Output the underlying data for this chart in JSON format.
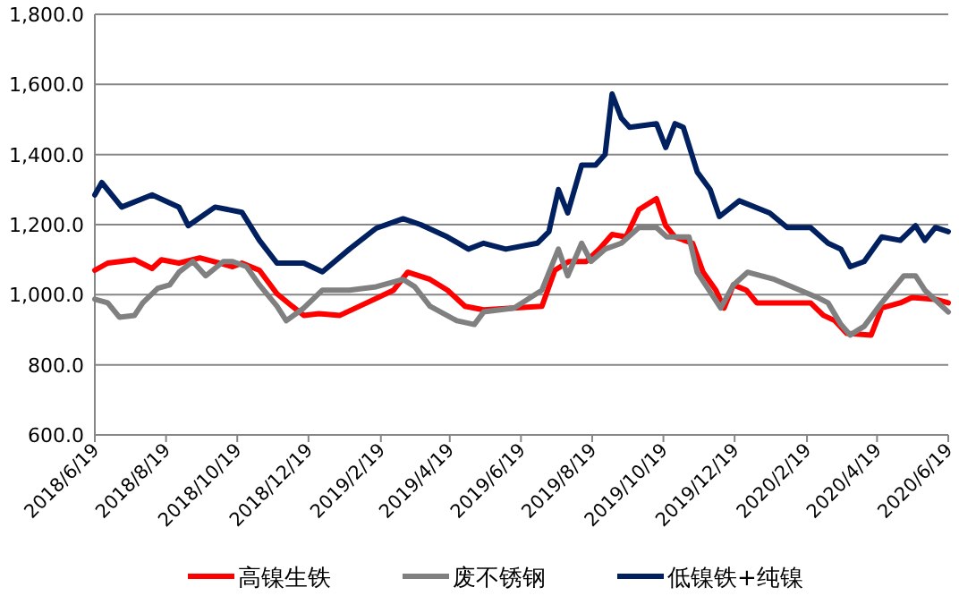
{
  "chart_data": {
    "type": "line",
    "xlim": [
      "2018-06-19",
      "2020-06-19"
    ],
    "xticks": [
      {
        "value": "2018-06-19",
        "label": "2018/6/19"
      },
      {
        "value": "2018-08-19",
        "label": "2018/8/19"
      },
      {
        "value": "2018-10-19",
        "label": "2018/10/19"
      },
      {
        "value": "2018-12-19",
        "label": "2018/12/19"
      },
      {
        "value": "2019-02-19",
        "label": "2019/2/19"
      },
      {
        "value": "2019-04-19",
        "label": "2019/4/19"
      },
      {
        "value": "2019-06-19",
        "label": "2019/6/19"
      },
      {
        "value": "2019-08-19",
        "label": "2019/8/19"
      },
      {
        "value": "2019-10-19",
        "label": "2019/10/19"
      },
      {
        "value": "2019-12-19",
        "label": "2019/12/19"
      },
      {
        "value": "2020-02-19",
        "label": "2020/2/19"
      },
      {
        "value": "2020-04-19",
        "label": "2020/4/19"
      },
      {
        "value": "2020-06-19",
        "label": "2020/6/19"
      }
    ],
    "ylim": [
      600,
      1800
    ],
    "yticks": [
      {
        "value": 600,
        "label": "600.0"
      },
      {
        "value": 800,
        "label": "800.0"
      },
      {
        "value": 1000,
        "label": "1,000.0"
      },
      {
        "value": 1200,
        "label": "1,200.0"
      },
      {
        "value": 1400,
        "label": "1,400.0"
      },
      {
        "value": 1600,
        "label": "1,600.0"
      },
      {
        "value": 1800,
        "label": "1,800.0"
      }
    ],
    "grid": "y",
    "legend": "bottom",
    "marker": "none",
    "line_style": "solid",
    "series": [
      {
        "name": "高镍生铁",
        "color": "#ff0000",
        "x": [
          "2018-06-19",
          "2018-06-30",
          "2018-07-23",
          "2018-08-07",
          "2018-08-15",
          "2018-08-30",
          "2018-09-17",
          "2018-10-15",
          "2018-10-23",
          "2018-11-07",
          "2018-11-22",
          "2018-12-05",
          "2018-12-15",
          "2018-12-28",
          "2019-01-15",
          "2019-02-07",
          "2019-03-02",
          "2019-03-14",
          "2019-04-02",
          "2019-04-17",
          "2019-05-02",
          "2019-05-18",
          "2019-07-07",
          "2019-07-18",
          "2019-07-30",
          "2019-08-14",
          "2019-08-25",
          "2019-09-05",
          "2019-09-17",
          "2019-09-28",
          "2019-10-13",
          "2019-10-21",
          "2019-10-29",
          "2019-11-13",
          "2019-11-22",
          "2019-12-03",
          "2019-12-10",
          "2019-12-18",
          "2019-12-29",
          "2020-01-07",
          "2020-02-22",
          "2020-03-04",
          "2020-03-14",
          "2020-03-24",
          "2020-04-14",
          "2020-04-23",
          "2020-05-09",
          "2020-05-19",
          "2020-06-08",
          "2020-06-19"
        ],
        "values": [
          1070,
          1090,
          1100,
          1075,
          1100,
          1090,
          1105,
          1080,
          1090,
          1070,
          1003,
          967,
          941,
          946,
          941,
          977,
          1013,
          1064,
          1044,
          1013,
          967,
          957,
          967,
          1070,
          1095,
          1095,
          1130,
          1172,
          1165,
          1243,
          1274,
          1197,
          1165,
          1147,
          1064,
          1013,
          962,
          1028,
          1013,
          977,
          977,
          941,
          926,
          890,
          885,
          962,
          977,
          992,
          987,
          977
        ]
      },
      {
        "name": "废不锈钢",
        "color": "#808080",
        "x": [
          "2018-06-19",
          "2018-06-30",
          "2018-07-10",
          "2018-07-23",
          "2018-07-30",
          "2018-08-12",
          "2018-08-22",
          "2018-08-30",
          "2018-09-11",
          "2018-09-22",
          "2018-10-07",
          "2018-10-15",
          "2018-10-27",
          "2018-11-07",
          "2018-11-22",
          "2018-11-30",
          "2018-12-15",
          "2018-12-31",
          "2019-01-23",
          "2019-02-15",
          "2019-03-10",
          "2019-03-20",
          "2019-04-02",
          "2019-04-25",
          "2019-05-10",
          "2019-05-18",
          "2019-06-13",
          "2019-07-07",
          "2019-07-21",
          "2019-07-29",
          "2019-08-10",
          "2019-08-18",
          "2019-08-30",
          "2019-09-13",
          "2019-09-28",
          "2019-10-13",
          "2019-10-22",
          "2019-11-10",
          "2019-11-17",
          "2019-12-07",
          "2019-12-18",
          "2019-12-30",
          "2020-01-22",
          "2020-02-13",
          "2020-02-28",
          "2020-03-08",
          "2020-03-19",
          "2020-03-27",
          "2020-04-08",
          "2020-04-23",
          "2020-05-12",
          "2020-05-22",
          "2020-05-30",
          "2020-06-19"
        ],
        "values": [
          987,
          977,
          936,
          941,
          977,
          1018,
          1028,
          1064,
          1095,
          1054,
          1095,
          1095,
          1080,
          1028,
          967,
          926,
          962,
          1013,
          1013,
          1023,
          1044,
          1023,
          967,
          926,
          915,
          951,
          962,
          1013,
          1130,
          1054,
          1147,
          1095,
          1130,
          1147,
          1192,
          1192,
          1165,
          1165,
          1064,
          962,
          1028,
          1064,
          1044,
          1013,
          992,
          977,
          915,
          885,
          910,
          977,
          1054,
          1054,
          1013,
          951
        ]
      },
      {
        "name": "低镍铁+纯镍",
        "color": "#002060",
        "x": [
          "2018-06-19",
          "2018-06-25",
          "2018-07-12",
          "2018-08-07",
          "2018-08-30",
          "2018-09-07",
          "2018-09-30",
          "2018-10-23",
          "2018-11-07",
          "2018-11-22",
          "2018-12-15",
          "2018-12-31",
          "2019-01-23",
          "2019-02-15",
          "2019-03-10",
          "2019-03-25",
          "2019-04-17",
          "2019-05-05",
          "2019-05-18",
          "2019-06-06",
          "2019-07-03",
          "2019-07-13",
          "2019-07-21",
          "2019-07-29",
          "2019-08-10",
          "2019-08-22",
          "2019-08-30",
          "2019-09-05",
          "2019-09-13",
          "2019-09-20",
          "2019-10-13",
          "2019-10-21",
          "2019-10-29",
          "2019-11-05",
          "2019-11-17",
          "2019-11-28",
          "2019-12-06",
          "2019-12-23",
          "2020-01-18",
          "2020-02-02",
          "2020-02-22",
          "2020-03-08",
          "2020-03-19",
          "2020-03-27",
          "2020-04-08",
          "2020-04-23",
          "2020-05-09",
          "2020-05-22",
          "2020-05-30",
          "2020-06-08",
          "2020-06-19"
        ],
        "values": [
          1285,
          1320,
          1250,
          1285,
          1250,
          1197,
          1250,
          1235,
          1155,
          1090,
          1090,
          1065,
          1130,
          1190,
          1217,
          1200,
          1165,
          1130,
          1147,
          1130,
          1147,
          1180,
          1300,
          1233,
          1370,
          1370,
          1400,
          1573,
          1504,
          1478,
          1488,
          1420,
          1488,
          1478,
          1350,
          1300,
          1223,
          1268,
          1233,
          1192,
          1192,
          1147,
          1130,
          1080,
          1095,
          1165,
          1155,
          1197,
          1155,
          1192,
          1180
        ]
      }
    ]
  }
}
